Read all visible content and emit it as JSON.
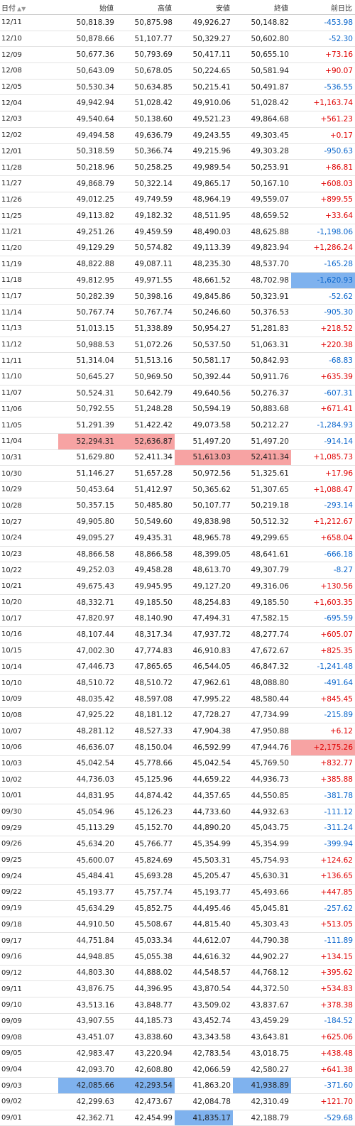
{
  "headers": {
    "date": "日付",
    "date_sort": "▲▼",
    "open": "始値",
    "high": "高値",
    "low": "安値",
    "close": "終値",
    "change": "前日比"
  },
  "rows": [
    {
      "d": "12/11",
      "o": "50,818.39",
      "h": "50,875.98",
      "l": "49,926.27",
      "c": "50,148.82",
      "ch": "-453.98"
    },
    {
      "d": "12/10",
      "o": "50,878.66",
      "h": "51,107.77",
      "l": "50,329.27",
      "c": "50,602.80",
      "ch": "-52.30"
    },
    {
      "d": "12/09",
      "o": "50,677.36",
      "h": "50,793.69",
      "l": "50,417.11",
      "c": "50,655.10",
      "ch": "+73.16"
    },
    {
      "d": "12/08",
      "o": "50,643.09",
      "h": "50,678.05",
      "l": "50,224.65",
      "c": "50,581.94",
      "ch": "+90.07"
    },
    {
      "d": "12/05",
      "o": "50,530.34",
      "h": "50,634.85",
      "l": "50,215.41",
      "c": "50,491.87",
      "ch": "-536.55"
    },
    {
      "d": "12/04",
      "o": "49,942.94",
      "h": "51,028.42",
      "l": "49,910.06",
      "c": "51,028.42",
      "ch": "+1,163.74"
    },
    {
      "d": "12/03",
      "o": "49,540.64",
      "h": "50,138.60",
      "l": "49,521.23",
      "c": "49,864.68",
      "ch": "+561.23"
    },
    {
      "d": "12/02",
      "o": "49,494.58",
      "h": "49,636.79",
      "l": "49,243.55",
      "c": "49,303.45",
      "ch": "+0.17"
    },
    {
      "d": "12/01",
      "o": "50,318.59",
      "h": "50,366.74",
      "l": "49,215.96",
      "c": "49,303.28",
      "ch": "-950.63"
    },
    {
      "d": "11/28",
      "o": "50,218.96",
      "h": "50,258.25",
      "l": "49,989.54",
      "c": "50,253.91",
      "ch": "+86.81"
    },
    {
      "d": "11/27",
      "o": "49,868.79",
      "h": "50,322.14",
      "l": "49,865.17",
      "c": "50,167.10",
      "ch": "+608.03"
    },
    {
      "d": "11/26",
      "o": "49,012.25",
      "h": "49,749.59",
      "l": "48,964.19",
      "c": "49,559.07",
      "ch": "+899.55"
    },
    {
      "d": "11/25",
      "o": "49,113.82",
      "h": "49,182.32",
      "l": "48,511.95",
      "c": "48,659.52",
      "ch": "+33.64"
    },
    {
      "d": "11/21",
      "o": "49,251.26",
      "h": "49,459.59",
      "l": "48,490.03",
      "c": "48,625.88",
      "ch": "-1,198.06"
    },
    {
      "d": "11/20",
      "o": "49,129.29",
      "h": "50,574.82",
      "l": "49,113.39",
      "c": "49,823.94",
      "ch": "+1,286.24"
    },
    {
      "d": "11/19",
      "o": "48,822.88",
      "h": "49,087.11",
      "l": "48,235.30",
      "c": "48,537.70",
      "ch": "-165.28"
    },
    {
      "d": "11/18",
      "o": "49,812.95",
      "h": "49,971.55",
      "l": "48,661.52",
      "c": "48,702.98",
      "ch": "-1,620.93",
      "hl": {
        "ch": "blue"
      }
    },
    {
      "d": "11/17",
      "o": "50,282.39",
      "h": "50,398.16",
      "l": "49,845.86",
      "c": "50,323.91",
      "ch": "-52.62"
    },
    {
      "d": "11/14",
      "o": "50,767.74",
      "h": "50,767.74",
      "l": "50,246.60",
      "c": "50,376.53",
      "ch": "-905.30"
    },
    {
      "d": "11/13",
      "o": "51,013.15",
      "h": "51,338.89",
      "l": "50,954.27",
      "c": "51,281.83",
      "ch": "+218.52"
    },
    {
      "d": "11/12",
      "o": "50,988.53",
      "h": "51,072.26",
      "l": "50,537.50",
      "c": "51,063.31",
      "ch": "+220.38"
    },
    {
      "d": "11/11",
      "o": "51,314.04",
      "h": "51,513.16",
      "l": "50,581.17",
      "c": "50,842.93",
      "ch": "-68.83"
    },
    {
      "d": "11/10",
      "o": "50,645.27",
      "h": "50,969.50",
      "l": "50,392.44",
      "c": "50,911.76",
      "ch": "+635.39"
    },
    {
      "d": "11/07",
      "o": "50,524.31",
      "h": "50,642.79",
      "l": "49,640.56",
      "c": "50,276.37",
      "ch": "-607.31"
    },
    {
      "d": "11/06",
      "o": "50,792.55",
      "h": "51,248.28",
      "l": "50,594.19",
      "c": "50,883.68",
      "ch": "+671.41"
    },
    {
      "d": "11/05",
      "o": "51,291.39",
      "h": "51,422.42",
      "l": "49,073.58",
      "c": "50,212.27",
      "ch": "-1,284.93"
    },
    {
      "d": "11/04",
      "o": "52,294.31",
      "h": "52,636.87",
      "l": "51,497.20",
      "c": "51,497.20",
      "ch": "-914.14",
      "hl": {
        "o": "red",
        "h": "red"
      }
    },
    {
      "d": "10/31",
      "o": "51,629.80",
      "h": "52,411.34",
      "l": "51,613.03",
      "c": "52,411.34",
      "ch": "+1,085.73",
      "hl": {
        "l": "red",
        "c": "red"
      }
    },
    {
      "d": "10/30",
      "o": "51,146.27",
      "h": "51,657.28",
      "l": "50,972.56",
      "c": "51,325.61",
      "ch": "+17.96"
    },
    {
      "d": "10/29",
      "o": "50,453.64",
      "h": "51,412.97",
      "l": "50,365.62",
      "c": "51,307.65",
      "ch": "+1,088.47"
    },
    {
      "d": "10/28",
      "o": "50,357.15",
      "h": "50,485.80",
      "l": "50,107.77",
      "c": "50,219.18",
      "ch": "-293.14"
    },
    {
      "d": "10/27",
      "o": "49,905.80",
      "h": "50,549.60",
      "l": "49,838.98",
      "c": "50,512.32",
      "ch": "+1,212.67"
    },
    {
      "d": "10/24",
      "o": "49,095.27",
      "h": "49,435.31",
      "l": "48,965.78",
      "c": "49,299.65",
      "ch": "+658.04"
    },
    {
      "d": "10/23",
      "o": "48,866.58",
      "h": "48,866.58",
      "l": "48,399.05",
      "c": "48,641.61",
      "ch": "-666.18"
    },
    {
      "d": "10/22",
      "o": "49,252.03",
      "h": "49,458.28",
      "l": "48,613.70",
      "c": "49,307.79",
      "ch": "-8.27"
    },
    {
      "d": "10/21",
      "o": "49,675.43",
      "h": "49,945.95",
      "l": "49,127.20",
      "c": "49,316.06",
      "ch": "+130.56"
    },
    {
      "d": "10/20",
      "o": "48,332.71",
      "h": "49,185.50",
      "l": "48,254.83",
      "c": "49,185.50",
      "ch": "+1,603.35"
    },
    {
      "d": "10/17",
      "o": "47,820.97",
      "h": "48,140.90",
      "l": "47,494.31",
      "c": "47,582.15",
      "ch": "-695.59"
    },
    {
      "d": "10/16",
      "o": "48,107.44",
      "h": "48,317.34",
      "l": "47,937.72",
      "c": "48,277.74",
      "ch": "+605.07"
    },
    {
      "d": "10/15",
      "o": "47,002.30",
      "h": "47,774.83",
      "l": "46,910.83",
      "c": "47,672.67",
      "ch": "+825.35"
    },
    {
      "d": "10/14",
      "o": "47,446.73",
      "h": "47,865.65",
      "l": "46,544.05",
      "c": "46,847.32",
      "ch": "-1,241.48"
    },
    {
      "d": "10/10",
      "o": "48,510.72",
      "h": "48,510.72",
      "l": "47,962.61",
      "c": "48,088.80",
      "ch": "-491.64"
    },
    {
      "d": "10/09",
      "o": "48,035.42",
      "h": "48,597.08",
      "l": "47,995.22",
      "c": "48,580.44",
      "ch": "+845.45"
    },
    {
      "d": "10/08",
      "o": "47,925.22",
      "h": "48,181.12",
      "l": "47,728.27",
      "c": "47,734.99",
      "ch": "-215.89"
    },
    {
      "d": "10/07",
      "o": "48,281.12",
      "h": "48,527.33",
      "l": "47,904.38",
      "c": "47,950.88",
      "ch": "+6.12"
    },
    {
      "d": "10/06",
      "o": "46,636.07",
      "h": "48,150.04",
      "l": "46,592.99",
      "c": "47,944.76",
      "ch": "+2,175.26",
      "hl": {
        "ch": "red"
      }
    },
    {
      "d": "10/03",
      "o": "45,042.54",
      "h": "45,778.66",
      "l": "45,042.54",
      "c": "45,769.50",
      "ch": "+832.77"
    },
    {
      "d": "10/02",
      "o": "44,736.03",
      "h": "45,125.96",
      "l": "44,659.22",
      "c": "44,936.73",
      "ch": "+385.88"
    },
    {
      "d": "10/01",
      "o": "44,831.95",
      "h": "44,874.42",
      "l": "44,357.65",
      "c": "44,550.85",
      "ch": "-381.78"
    },
    {
      "d": "09/30",
      "o": "45,054.96",
      "h": "45,126.23",
      "l": "44,733.60",
      "c": "44,932.63",
      "ch": "-111.12"
    },
    {
      "d": "09/29",
      "o": "45,113.29",
      "h": "45,152.70",
      "l": "44,890.20",
      "c": "45,043.75",
      "ch": "-311.24"
    },
    {
      "d": "09/26",
      "o": "45,634.20",
      "h": "45,766.77",
      "l": "45,354.99",
      "c": "45,354.99",
      "ch": "-399.94"
    },
    {
      "d": "09/25",
      "o": "45,600.07",
      "h": "45,824.69",
      "l": "45,503.31",
      "c": "45,754.93",
      "ch": "+124.62"
    },
    {
      "d": "09/24",
      "o": "45,484.41",
      "h": "45,693.28",
      "l": "45,205.47",
      "c": "45,630.31",
      "ch": "+136.65"
    },
    {
      "d": "09/22",
      "o": "45,193.77",
      "h": "45,757.74",
      "l": "45,193.77",
      "c": "45,493.66",
      "ch": "+447.85"
    },
    {
      "d": "09/19",
      "o": "45,634.29",
      "h": "45,852.75",
      "l": "44,495.46",
      "c": "45,045.81",
      "ch": "-257.62"
    },
    {
      "d": "09/18",
      "o": "44,910.50",
      "h": "45,508.67",
      "l": "44,815.40",
      "c": "45,303.43",
      "ch": "+513.05"
    },
    {
      "d": "09/17",
      "o": "44,751.84",
      "h": "45,033.34",
      "l": "44,612.07",
      "c": "44,790.38",
      "ch": "-111.89"
    },
    {
      "d": "09/16",
      "o": "44,948.85",
      "h": "45,055.38",
      "l": "44,616.32",
      "c": "44,902.27",
      "ch": "+134.15"
    },
    {
      "d": "09/12",
      "o": "44,803.30",
      "h": "44,888.02",
      "l": "44,548.57",
      "c": "44,768.12",
      "ch": "+395.62"
    },
    {
      "d": "09/11",
      "o": "43,876.75",
      "h": "44,396.95",
      "l": "43,870.54",
      "c": "44,372.50",
      "ch": "+534.83"
    },
    {
      "d": "09/10",
      "o": "43,513.16",
      "h": "43,848.77",
      "l": "43,509.02",
      "c": "43,837.67",
      "ch": "+378.38"
    },
    {
      "d": "09/09",
      "o": "43,907.55",
      "h": "44,185.73",
      "l": "43,452.74",
      "c": "43,459.29",
      "ch": "-184.52"
    },
    {
      "d": "09/08",
      "o": "43,451.07",
      "h": "43,838.60",
      "l": "43,343.58",
      "c": "43,643.81",
      "ch": "+625.06"
    },
    {
      "d": "09/05",
      "o": "42,983.47",
      "h": "43,220.94",
      "l": "42,783.54",
      "c": "43,018.75",
      "ch": "+438.48"
    },
    {
      "d": "09/04",
      "o": "42,093.70",
      "h": "42,608.80",
      "l": "42,066.59",
      "c": "42,580.27",
      "ch": "+641.38"
    },
    {
      "d": "09/03",
      "o": "42,085.66",
      "h": "42,293.54",
      "l": "41,863.20",
      "c": "41,938.89",
      "ch": "-371.60",
      "hl": {
        "o": "blue",
        "h": "blue",
        "c": "blue"
      }
    },
    {
      "d": "09/02",
      "o": "42,299.63",
      "h": "42,473.67",
      "l": "42,084.78",
      "c": "42,310.49",
      "ch": "+121.70"
    },
    {
      "d": "09/01",
      "o": "42,362.71",
      "h": "42,454.99",
      "l": "41,835.17",
      "c": "42,188.79",
      "ch": "-529.68",
      "hl": {
        "l": "blue"
      }
    }
  ]
}
